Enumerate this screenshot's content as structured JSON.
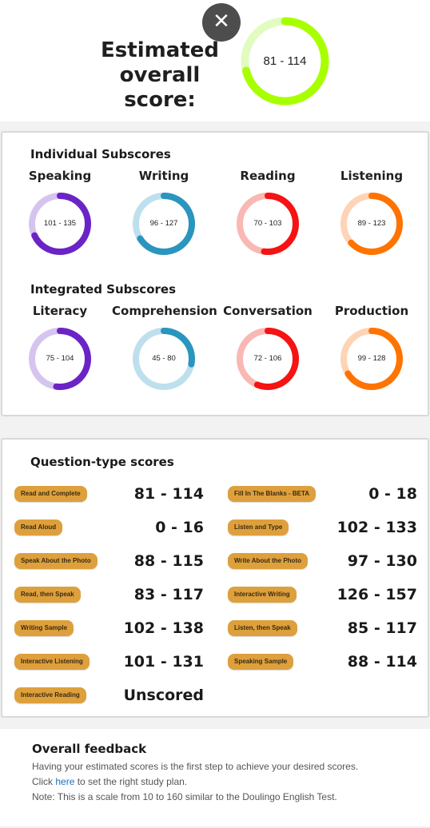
{
  "header": {
    "close_glyph": "✕",
    "title_line1": "Estimated",
    "title_line2": "overall score:",
    "overall": {
      "label": "81 - 114",
      "fraction": 0.71,
      "color": "#a8ff00",
      "track": "#e2fcc0"
    }
  },
  "individual": {
    "title": "Individual Subscores",
    "items": [
      {
        "name": "Speaking",
        "label": "101 - 135",
        "fraction": 0.68,
        "color": "#6a24c6",
        "track": "#d6c4f0"
      },
      {
        "name": "Writing",
        "label": "96 - 127",
        "fraction": 0.66,
        "color": "#2a95be",
        "track": "#bee0ee"
      },
      {
        "name": "Reading",
        "label": "70 - 103",
        "fraction": 0.52,
        "color": "#f51313",
        "track": "#f9b8b3"
      },
      {
        "name": "Listening",
        "label": "89 - 123",
        "fraction": 0.63,
        "color": "#ff7300",
        "track": "#fdd4b5"
      }
    ]
  },
  "integrated": {
    "title": "Integrated Subscores",
    "items": [
      {
        "name": "Literacy",
        "label": "75 - 104",
        "fraction": 0.52,
        "color": "#6a24c6",
        "track": "#d6c4f0"
      },
      {
        "name": "Comprehension",
        "label": "45 - 80",
        "fraction": 0.28,
        "color": "#2a95be",
        "track": "#bee0ee"
      },
      {
        "name": "Conversation",
        "label": "72 - 106",
        "fraction": 0.56,
        "color": "#f51313",
        "track": "#f9b8b3"
      },
      {
        "name": "Production",
        "label": "99 - 128",
        "fraction": 0.66,
        "color": "#ff7300",
        "track": "#fdd4b5"
      }
    ]
  },
  "question_types": {
    "title": "Question-type scores",
    "left": [
      {
        "label": "Read and Complete",
        "score": "81 - 114"
      },
      {
        "label": "Read Aloud",
        "score": "0 - 16"
      },
      {
        "label": "Speak About the Photo",
        "score": "88 - 115"
      },
      {
        "label": "Read, then Speak",
        "score": "83 - 117"
      },
      {
        "label": "Writing Sample",
        "score": "102 - 138"
      },
      {
        "label": "Interactive Listening",
        "score": "101 - 131"
      },
      {
        "label": "Interactive Reading",
        "score": "Unscored"
      }
    ],
    "right": [
      {
        "label": "Fill In The Blanks - BETA",
        "score": "0 - 18"
      },
      {
        "label": "Listen and Type",
        "score": "102 - 133"
      },
      {
        "label": "Write About the Photo",
        "score": "97 - 130"
      },
      {
        "label": "Interactive Writing",
        "score": "126 - 157"
      },
      {
        "label": "Listen, then Speak",
        "score": "85 - 117"
      },
      {
        "label": "Speaking Sample",
        "score": "88 - 114"
      }
    ]
  },
  "feedback": {
    "title": "Overall feedback",
    "line1": "Having your estimated scores is the first step to achieve your desired scores.",
    "line2_prefix": "Click ",
    "line2_link": "here",
    "line2_suffix": " to set the right study plan.",
    "line3": "Note: This is a scale from 10 to 160 similar to the Doulingo English Test."
  }
}
